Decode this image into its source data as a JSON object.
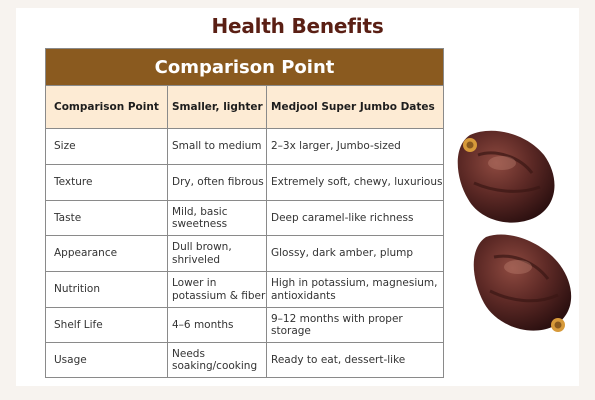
{
  "page": {
    "heading": "Health Benefits"
  },
  "table": {
    "title": "Comparison Point",
    "headers": [
      "Comparison Point",
      "Smaller, lighter",
      "Medjool Super Jumbo Dates"
    ],
    "rows": [
      [
        "Size",
        "Small to medium",
        "2–3x larger, Jumbo-sized"
      ],
      [
        "Texture",
        "Dry, often fibrous",
        "Extremely soft, chewy, luxurious"
      ],
      [
        "Taste",
        "Mild, basic sweetness",
        "Deep caramel-like richness"
      ],
      [
        "Appearance",
        "Dull brown, shriveled",
        "Glossy, dark amber, plump"
      ],
      [
        "Nutrition",
        "Lower in potassium & fiber",
        "High in potassium, magnesium, antioxidants"
      ],
      [
        "Shelf Life",
        "4–6 months",
        "9–12 months with proper storage"
      ],
      [
        "Usage",
        "Needs soaking/cooking",
        "Ready to eat, dessert-like"
      ]
    ]
  },
  "colors": {
    "title_bar": "#8a5a1f",
    "header_bg": "#fdebd4",
    "heading_text": "#5a1f14"
  },
  "images": [
    "medjool-date-photo",
    "medjool-date-photo"
  ]
}
